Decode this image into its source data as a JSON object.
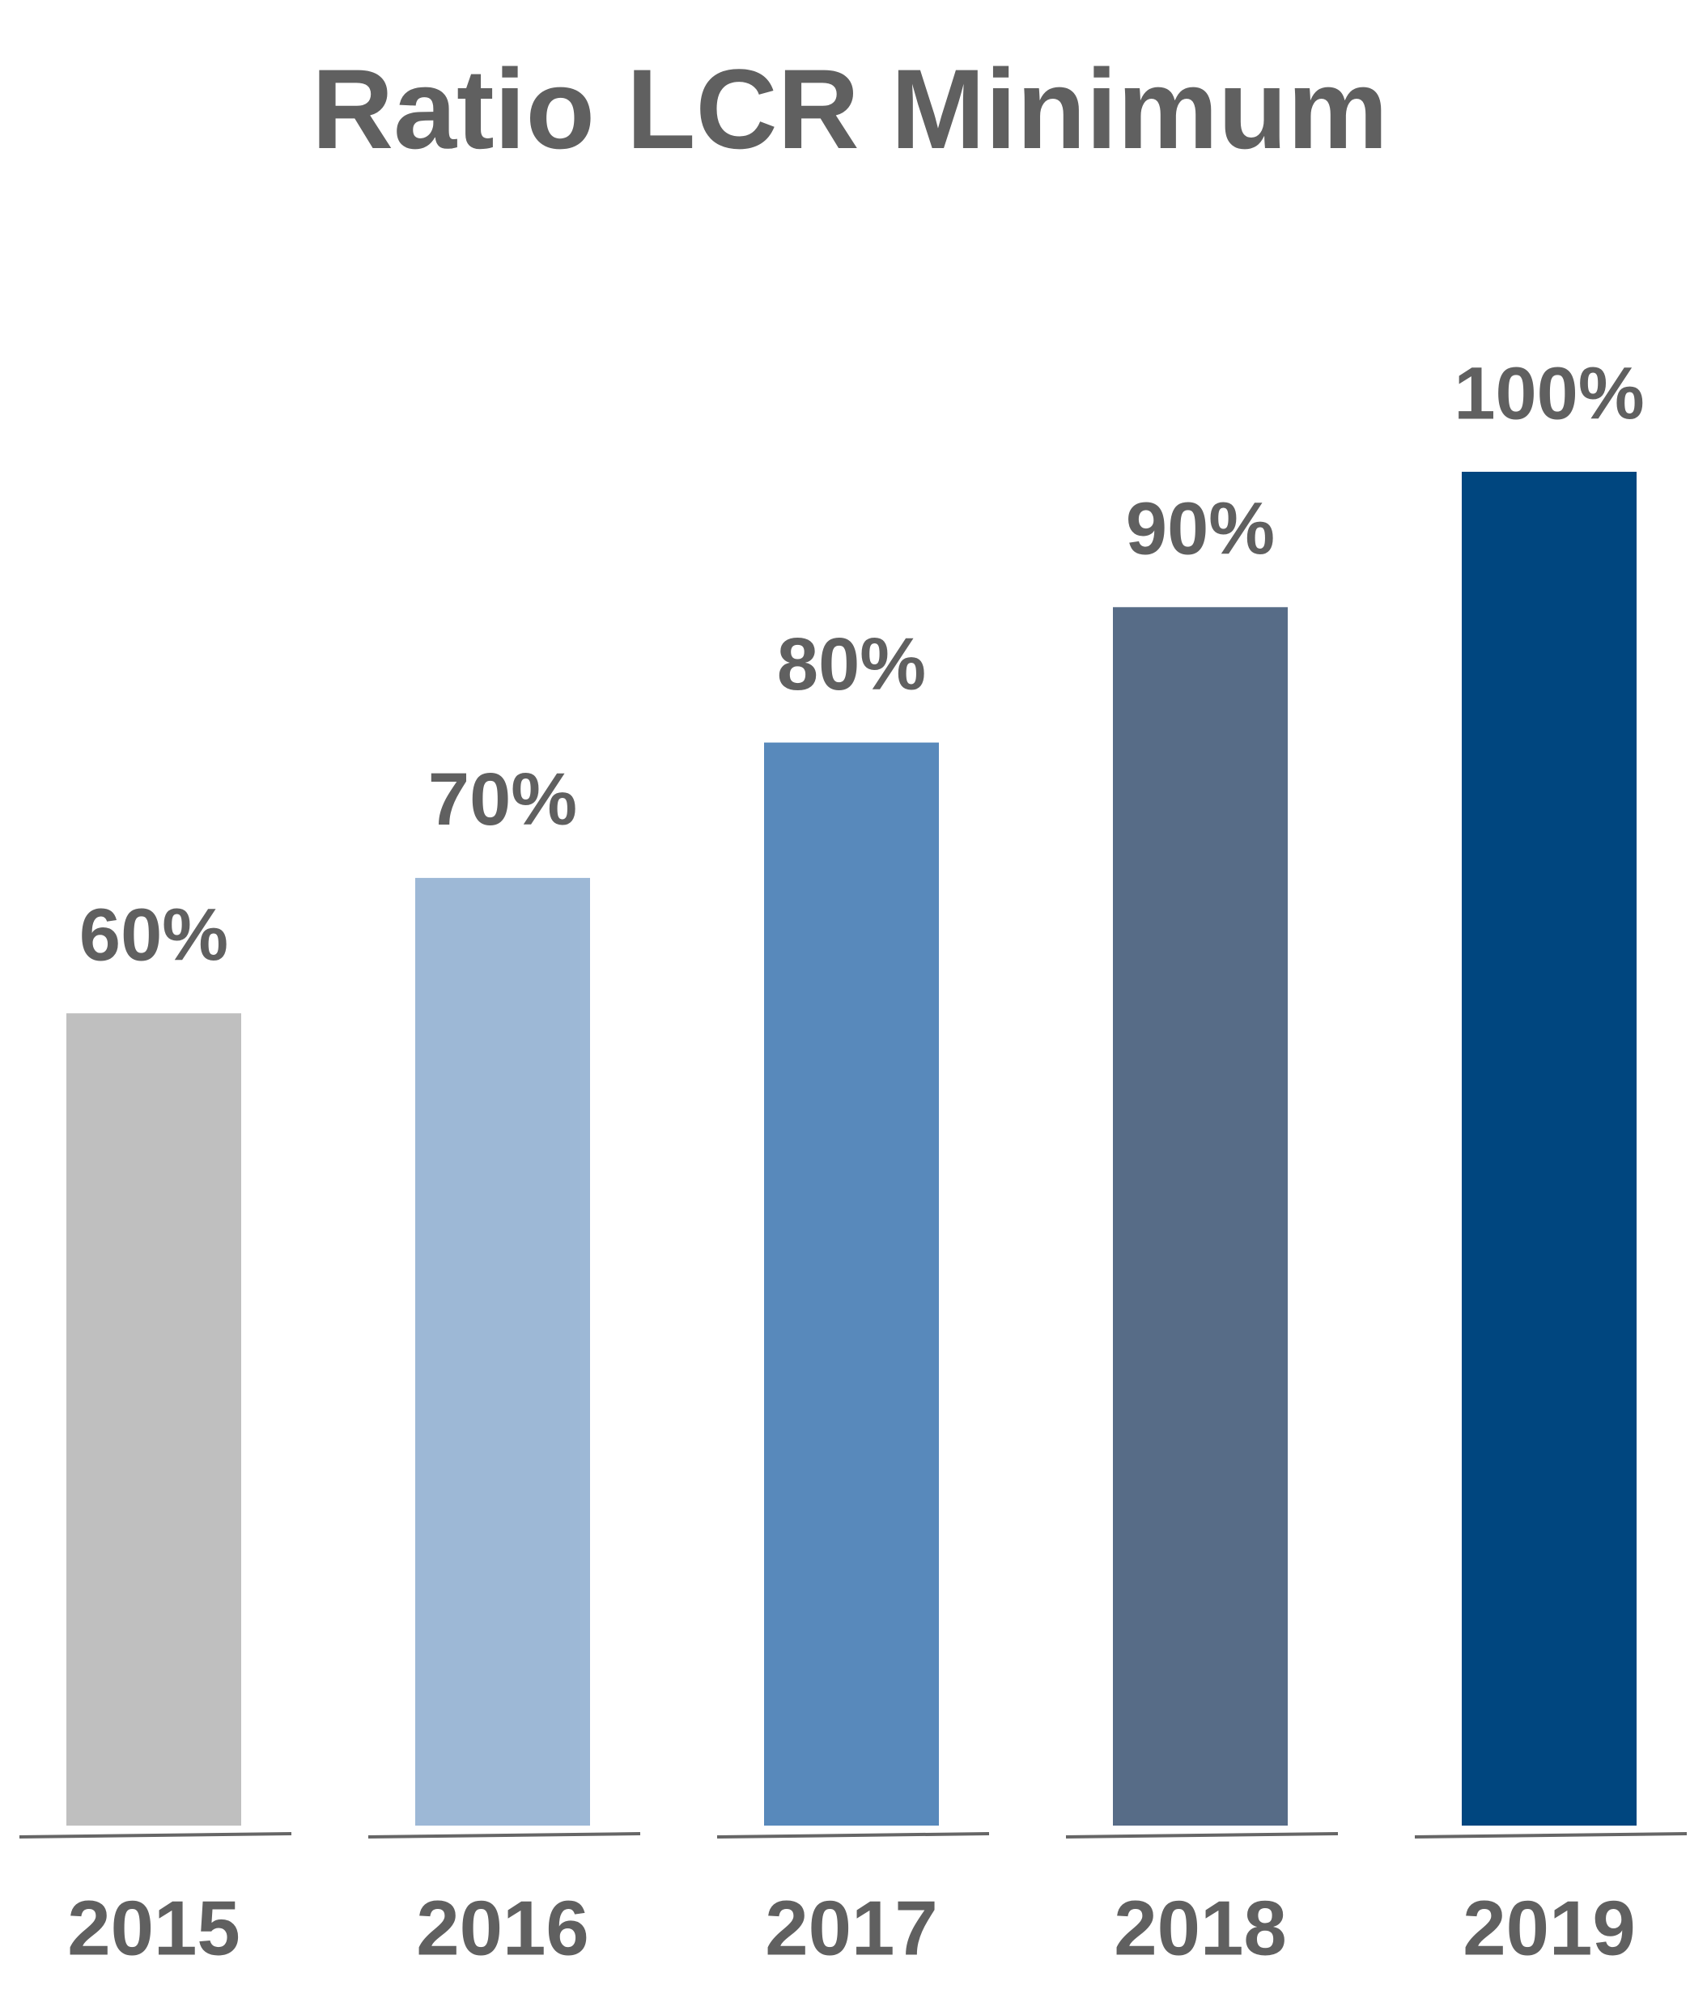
{
  "chart_data": {
    "type": "bar",
    "title": "Ratio LCR Minimum",
    "categories": [
      "2015",
      "2016",
      "2017",
      "2018",
      "2019"
    ],
    "values": [
      60,
      70,
      80,
      90,
      100
    ],
    "value_labels": [
      "60%",
      "70%",
      "80%",
      "90%",
      "100%"
    ],
    "colors": [
      "#bfbfbf",
      "#9db8d6",
      "#5889bb",
      "#576c87",
      "#00467f"
    ],
    "grid": false
  }
}
